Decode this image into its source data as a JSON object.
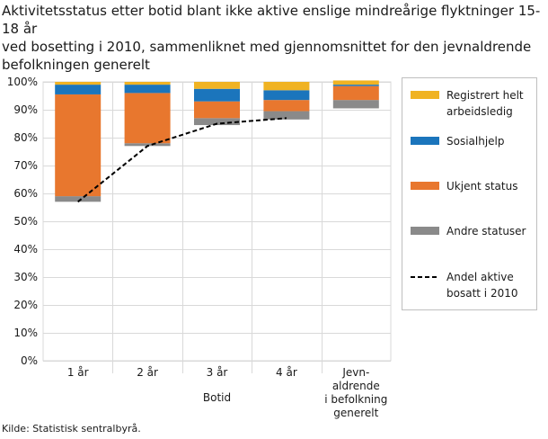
{
  "title_lines": [
    "Aktivitetsstatus etter botid blant ikke aktive enslige mindreårige flyktninger 15-18 år",
    "ved bosetting i 2010, sammenliknet med gjennomsnittet for den jevnaldrende",
    "befolkningen generelt"
  ],
  "source": "Kilde: Statistisk sentralbyrå.",
  "chart_data": {
    "type": "bar",
    "stacked": true,
    "title": "Aktivitetsstatus etter botid blant ikke aktive enslige mindreårige flyktninger 15-18 år ved bosetting i 2010, sammenliknet med gjennomsnittet for den jevnaldrende befolkningen generelt",
    "xlabel": "Botid",
    "ylabel": "",
    "ylim": [
      0,
      100
    ],
    "yticks": [
      "0%",
      "10%",
      "20%",
      "30%",
      "40%",
      "50%",
      "60%",
      "70%",
      "80%",
      "90%",
      "100%"
    ],
    "categories": [
      [
        "1 år"
      ],
      [
        "2 år"
      ],
      [
        "3 år"
      ],
      [
        "4 år"
      ],
      [
        "Jevn-",
        "aldrende",
        "i befolkning",
        "generelt"
      ]
    ],
    "series": [
      {
        "name": "Andre statuser",
        "legend_lines": [
          "Andre statuser"
        ],
        "color": "#8a8a8a",
        "base": [
          57,
          77,
          84.5,
          86.5,
          90.5
        ],
        "values": [
          2,
          1,
          2.5,
          3,
          3
        ]
      },
      {
        "name": "Ukjent status",
        "legend_lines": [
          "Ukjent status"
        ],
        "color": "#e8772e",
        "values": [
          36.5,
          18,
          6,
          4,
          5
        ]
      },
      {
        "name": "Sosialhjelp",
        "legend_lines": [
          "Sosialhjelp"
        ],
        "color": "#1b75bc",
        "values": [
          3.5,
          3,
          4.5,
          3.5,
          0.5
        ]
      },
      {
        "name": "Registrert helt arbeidsledig",
        "legend_lines": [
          "Registrert helt",
          "arbeidsledig"
        ],
        "color": "#f0b323",
        "values": [
          1,
          1,
          2.5,
          3,
          1.5
        ]
      }
    ],
    "line": {
      "name": "Andel aktive bosatt i 2010",
      "legend_lines": [
        "Andel aktive",
        "bosatt i 2010"
      ],
      "color": "#000000",
      "values": [
        57,
        77,
        85,
        87,
        null
      ]
    }
  }
}
